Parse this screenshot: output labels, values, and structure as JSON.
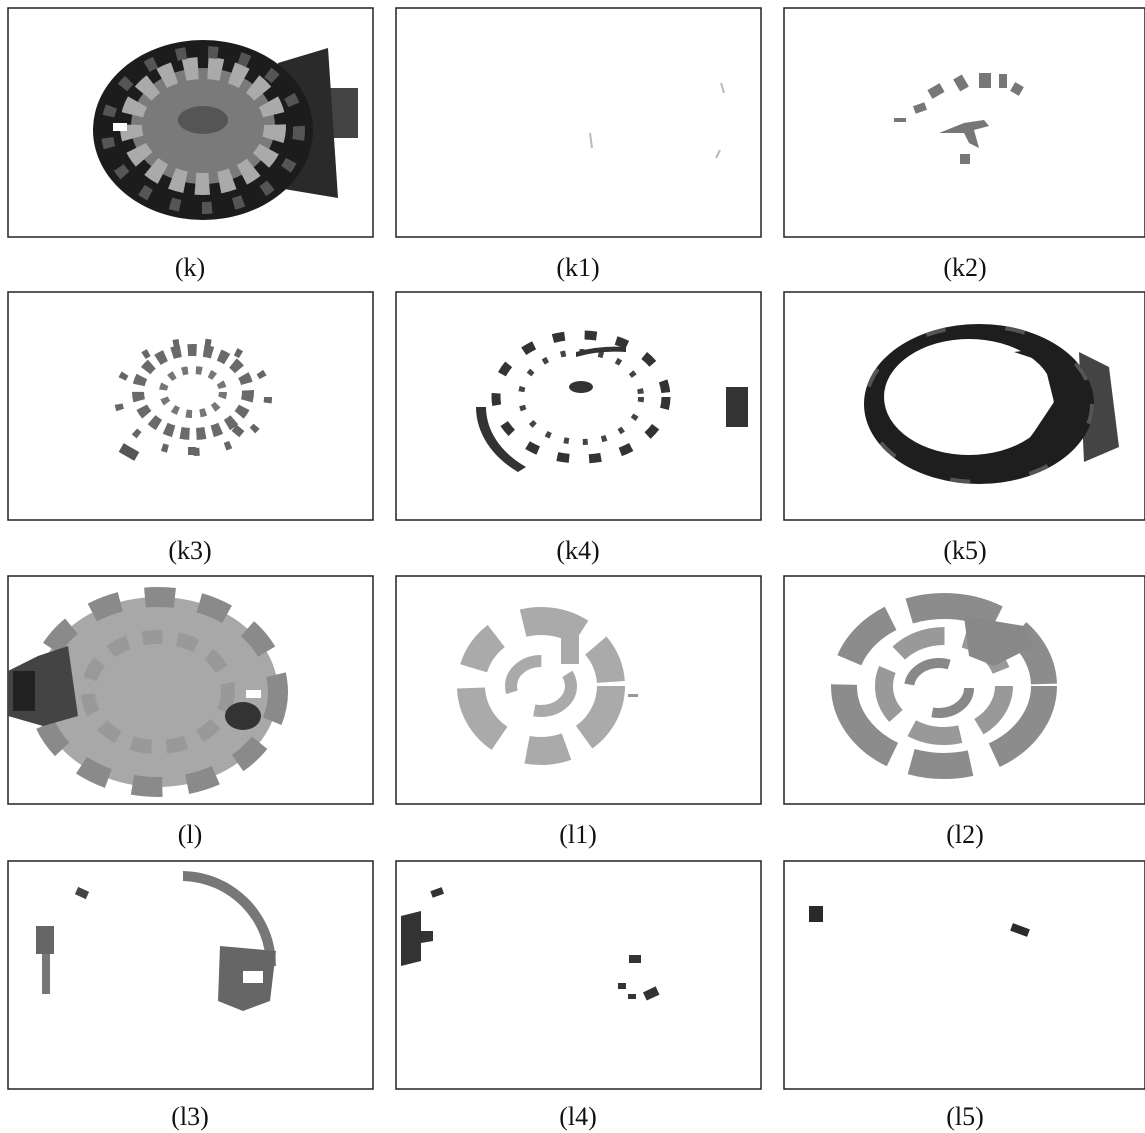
{
  "figure": {
    "panels": [
      {
        "caption": "(k)"
      },
      {
        "caption": "(k1)"
      },
      {
        "caption": "(k2)"
      },
      {
        "caption": "(k3)"
      },
      {
        "caption": "(k4)"
      },
      {
        "caption": "(k5)"
      },
      {
        "caption": "(l)"
      },
      {
        "caption": "(l1)"
      },
      {
        "caption": "(l2)"
      },
      {
        "caption": "(l3)"
      },
      {
        "caption": "(l4)"
      },
      {
        "caption": "(l5)"
      }
    ]
  }
}
